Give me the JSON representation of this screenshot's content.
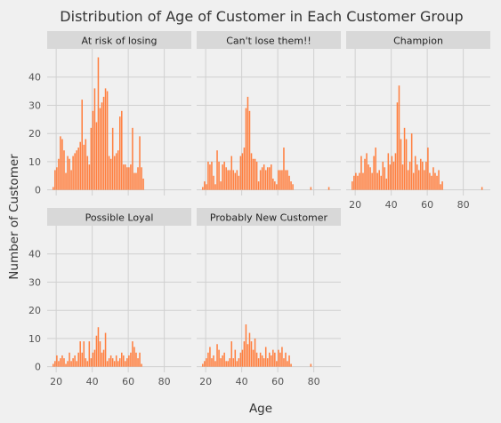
{
  "chart_data": {
    "type": "bar",
    "title": "Distribution of Age of Customer in Each Customer Group",
    "xlabel": "Age",
    "ylabel": "Number of Customer",
    "xlim": [
      15,
      95
    ],
    "ylim": [
      -2,
      50
    ],
    "xticks": [
      20,
      40,
      60,
      80
    ],
    "yticks": [
      0,
      10,
      20,
      30,
      40
    ],
    "bar_color": "#ff7f3f",
    "panel_background": "#f0f0f0",
    "strip_background": "#d8d8d8",
    "grid": true,
    "panels": [
      {
        "name": "At risk of losing",
        "bins": [
          {
            "age": 18,
            "count": 1
          },
          {
            "age": 19,
            "count": 7
          },
          {
            "age": 20,
            "count": 8
          },
          {
            "age": 21,
            "count": 11
          },
          {
            "age": 22,
            "count": 19
          },
          {
            "age": 23,
            "count": 18
          },
          {
            "age": 24,
            "count": 14
          },
          {
            "age": 25,
            "count": 6
          },
          {
            "age": 26,
            "count": 12
          },
          {
            "age": 27,
            "count": 11
          },
          {
            "age": 28,
            "count": 7
          },
          {
            "age": 29,
            "count": 12
          },
          {
            "age": 30,
            "count": 13
          },
          {
            "age": 31,
            "count": 14
          },
          {
            "age": 32,
            "count": 15
          },
          {
            "age": 33,
            "count": 17
          },
          {
            "age": 34,
            "count": 32
          },
          {
            "age": 35,
            "count": 16
          },
          {
            "age": 36,
            "count": 18
          },
          {
            "age": 37,
            "count": 12
          },
          {
            "age": 38,
            "count": 9
          },
          {
            "age": 39,
            "count": 22
          },
          {
            "age": 40,
            "count": 28
          },
          {
            "age": 41,
            "count": 36
          },
          {
            "age": 42,
            "count": 24
          },
          {
            "age": 43,
            "count": 47
          },
          {
            "age": 44,
            "count": 29
          },
          {
            "age": 45,
            "count": 31
          },
          {
            "age": 46,
            "count": 33
          },
          {
            "age": 47,
            "count": 36
          },
          {
            "age": 48,
            "count": 35
          },
          {
            "age": 49,
            "count": 12
          },
          {
            "age": 50,
            "count": 11
          },
          {
            "age": 51,
            "count": 22
          },
          {
            "age": 52,
            "count": 12
          },
          {
            "age": 53,
            "count": 13
          },
          {
            "age": 54,
            "count": 14
          },
          {
            "age": 55,
            "count": 26
          },
          {
            "age": 56,
            "count": 28
          },
          {
            "age": 57,
            "count": 9
          },
          {
            "age": 58,
            "count": 9
          },
          {
            "age": 59,
            "count": 8
          },
          {
            "age": 60,
            "count": 8
          },
          {
            "age": 61,
            "count": 9
          },
          {
            "age": 62,
            "count": 22
          },
          {
            "age": 63,
            "count": 6
          },
          {
            "age": 64,
            "count": 6
          },
          {
            "age": 65,
            "count": 8
          },
          {
            "age": 66,
            "count": 19
          },
          {
            "age": 67,
            "count": 8
          },
          {
            "age": 68,
            "count": 4
          }
        ]
      },
      {
        "name": "Can't lose them!!",
        "bins": [
          {
            "age": 18,
            "count": 1
          },
          {
            "age": 19,
            "count": 3
          },
          {
            "age": 20,
            "count": 2
          },
          {
            "age": 21,
            "count": 10
          },
          {
            "age": 22,
            "count": 9
          },
          {
            "age": 23,
            "count": 10
          },
          {
            "age": 24,
            "count": 5
          },
          {
            "age": 25,
            "count": 2
          },
          {
            "age": 26,
            "count": 14
          },
          {
            "age": 27,
            "count": 10
          },
          {
            "age": 28,
            "count": 3
          },
          {
            "age": 29,
            "count": 9
          },
          {
            "age": 30,
            "count": 10
          },
          {
            "age": 31,
            "count": 8
          },
          {
            "age": 32,
            "count": 7
          },
          {
            "age": 33,
            "count": 7
          },
          {
            "age": 34,
            "count": 12
          },
          {
            "age": 35,
            "count": 7
          },
          {
            "age": 36,
            "count": 6
          },
          {
            "age": 37,
            "count": 7
          },
          {
            "age": 38,
            "count": 5
          },
          {
            "age": 39,
            "count": 12
          },
          {
            "age": 40,
            "count": 13
          },
          {
            "age": 41,
            "count": 15
          },
          {
            "age": 42,
            "count": 29
          },
          {
            "age": 43,
            "count": 33
          },
          {
            "age": 44,
            "count": 28
          },
          {
            "age": 45,
            "count": 13
          },
          {
            "age": 46,
            "count": 11
          },
          {
            "age": 47,
            "count": 11
          },
          {
            "age": 48,
            "count": 10
          },
          {
            "age": 49,
            "count": 3
          },
          {
            "age": 50,
            "count": 7
          },
          {
            "age": 51,
            "count": 8
          },
          {
            "age": 52,
            "count": 9
          },
          {
            "age": 53,
            "count": 7
          },
          {
            "age": 54,
            "count": 8
          },
          {
            "age": 55,
            "count": 8
          },
          {
            "age": 56,
            "count": 9
          },
          {
            "age": 57,
            "count": 4
          },
          {
            "age": 58,
            "count": 3
          },
          {
            "age": 59,
            "count": 2
          },
          {
            "age": 60,
            "count": 7
          },
          {
            "age": 61,
            "count": 7
          },
          {
            "age": 62,
            "count": 7
          },
          {
            "age": 63,
            "count": 15
          },
          {
            "age": 64,
            "count": 7
          },
          {
            "age": 65,
            "count": 7
          },
          {
            "age": 66,
            "count": 5
          },
          {
            "age": 67,
            "count": 3
          },
          {
            "age": 68,
            "count": 2
          },
          {
            "age": 78,
            "count": 1
          },
          {
            "age": 88,
            "count": 1
          }
        ]
      },
      {
        "name": "Champion",
        "bins": [
          {
            "age": 18,
            "count": 3
          },
          {
            "age": 19,
            "count": 5
          },
          {
            "age": 20,
            "count": 6
          },
          {
            "age": 21,
            "count": 5
          },
          {
            "age": 22,
            "count": 6
          },
          {
            "age": 23,
            "count": 12
          },
          {
            "age": 24,
            "count": 6
          },
          {
            "age": 25,
            "count": 11
          },
          {
            "age": 26,
            "count": 13
          },
          {
            "age": 27,
            "count": 9
          },
          {
            "age": 28,
            "count": 8
          },
          {
            "age": 29,
            "count": 6
          },
          {
            "age": 30,
            "count": 12
          },
          {
            "age": 31,
            "count": 15
          },
          {
            "age": 32,
            "count": 6
          },
          {
            "age": 33,
            "count": 7
          },
          {
            "age": 34,
            "count": 5
          },
          {
            "age": 35,
            "count": 10
          },
          {
            "age": 36,
            "count": 8
          },
          {
            "age": 37,
            "count": 4
          },
          {
            "age": 38,
            "count": 13
          },
          {
            "age": 39,
            "count": 9
          },
          {
            "age": 40,
            "count": 12
          },
          {
            "age": 41,
            "count": 10
          },
          {
            "age": 42,
            "count": 13
          },
          {
            "age": 43,
            "count": 31
          },
          {
            "age": 44,
            "count": 37
          },
          {
            "age": 45,
            "count": 18
          },
          {
            "age": 46,
            "count": 9
          },
          {
            "age": 47,
            "count": 22
          },
          {
            "age": 48,
            "count": 18
          },
          {
            "age": 49,
            "count": 7
          },
          {
            "age": 50,
            "count": 10
          },
          {
            "age": 51,
            "count": 20
          },
          {
            "age": 52,
            "count": 6
          },
          {
            "age": 53,
            "count": 12
          },
          {
            "age": 54,
            "count": 9
          },
          {
            "age": 55,
            "count": 7
          },
          {
            "age": 56,
            "count": 11
          },
          {
            "age": 57,
            "count": 10
          },
          {
            "age": 58,
            "count": 7
          },
          {
            "age": 59,
            "count": 10
          },
          {
            "age": 60,
            "count": 15
          },
          {
            "age": 61,
            "count": 6
          },
          {
            "age": 62,
            "count": 5
          },
          {
            "age": 63,
            "count": 8
          },
          {
            "age": 64,
            "count": 6
          },
          {
            "age": 65,
            "count": 5
          },
          {
            "age": 66,
            "count": 7
          },
          {
            "age": 67,
            "count": 2
          },
          {
            "age": 68,
            "count": 3
          },
          {
            "age": 90,
            "count": 1
          }
        ]
      },
      {
        "name": "Possible Loyal",
        "bins": [
          {
            "age": 18,
            "count": 1
          },
          {
            "age": 19,
            "count": 2
          },
          {
            "age": 20,
            "count": 4
          },
          {
            "age": 21,
            "count": 2
          },
          {
            "age": 22,
            "count": 3
          },
          {
            "age": 23,
            "count": 4
          },
          {
            "age": 24,
            "count": 3
          },
          {
            "age": 25,
            "count": 1
          },
          {
            "age": 26,
            "count": 2
          },
          {
            "age": 27,
            "count": 5
          },
          {
            "age": 28,
            "count": 2
          },
          {
            "age": 29,
            "count": 3
          },
          {
            "age": 30,
            "count": 4
          },
          {
            "age": 31,
            "count": 2
          },
          {
            "age": 32,
            "count": 5
          },
          {
            "age": 33,
            "count": 9
          },
          {
            "age": 34,
            "count": 5
          },
          {
            "age": 35,
            "count": 9
          },
          {
            "age": 36,
            "count": 3
          },
          {
            "age": 37,
            "count": 2
          },
          {
            "age": 38,
            "count": 9
          },
          {
            "age": 39,
            "count": 3
          },
          {
            "age": 40,
            "count": 5
          },
          {
            "age": 41,
            "count": 6
          },
          {
            "age": 42,
            "count": 11
          },
          {
            "age": 43,
            "count": 14
          },
          {
            "age": 44,
            "count": 9
          },
          {
            "age": 45,
            "count": 5
          },
          {
            "age": 46,
            "count": 6
          },
          {
            "age": 47,
            "count": 12
          },
          {
            "age": 48,
            "count": 2
          },
          {
            "age": 49,
            "count": 3
          },
          {
            "age": 50,
            "count": 4
          },
          {
            "age": 51,
            "count": 3
          },
          {
            "age": 52,
            "count": 2
          },
          {
            "age": 53,
            "count": 4
          },
          {
            "age": 54,
            "count": 2
          },
          {
            "age": 55,
            "count": 3
          },
          {
            "age": 56,
            "count": 5
          },
          {
            "age": 57,
            "count": 4
          },
          {
            "age": 58,
            "count": 2
          },
          {
            "age": 59,
            "count": 3
          },
          {
            "age": 60,
            "count": 4
          },
          {
            "age": 61,
            "count": 5
          },
          {
            "age": 62,
            "count": 9
          },
          {
            "age": 63,
            "count": 7
          },
          {
            "age": 64,
            "count": 5
          },
          {
            "age": 65,
            "count": 3
          },
          {
            "age": 66,
            "count": 5
          },
          {
            "age": 67,
            "count": 1
          }
        ]
      },
      {
        "name": "Probably New Customer",
        "bins": [
          {
            "age": 18,
            "count": 1
          },
          {
            "age": 19,
            "count": 2
          },
          {
            "age": 20,
            "count": 3
          },
          {
            "age": 21,
            "count": 5
          },
          {
            "age": 22,
            "count": 7
          },
          {
            "age": 23,
            "count": 3
          },
          {
            "age": 24,
            "count": 4
          },
          {
            "age": 25,
            "count": 2
          },
          {
            "age": 26,
            "count": 8
          },
          {
            "age": 27,
            "count": 6
          },
          {
            "age": 28,
            "count": 3
          },
          {
            "age": 29,
            "count": 4
          },
          {
            "age": 30,
            "count": 5
          },
          {
            "age": 31,
            "count": 2
          },
          {
            "age": 32,
            "count": 2
          },
          {
            "age": 33,
            "count": 3
          },
          {
            "age": 34,
            "count": 9
          },
          {
            "age": 35,
            "count": 3
          },
          {
            "age": 36,
            "count": 6
          },
          {
            "age": 37,
            "count": 2
          },
          {
            "age": 38,
            "count": 3
          },
          {
            "age": 39,
            "count": 5
          },
          {
            "age": 40,
            "count": 6
          },
          {
            "age": 41,
            "count": 9
          },
          {
            "age": 42,
            "count": 15
          },
          {
            "age": 43,
            "count": 8
          },
          {
            "age": 44,
            "count": 12
          },
          {
            "age": 45,
            "count": 9
          },
          {
            "age": 46,
            "count": 6
          },
          {
            "age": 47,
            "count": 10
          },
          {
            "age": 48,
            "count": 5
          },
          {
            "age": 49,
            "count": 3
          },
          {
            "age": 50,
            "count": 5
          },
          {
            "age": 51,
            "count": 4
          },
          {
            "age": 52,
            "count": 3
          },
          {
            "age": 53,
            "count": 7
          },
          {
            "age": 54,
            "count": 3
          },
          {
            "age": 55,
            "count": 5
          },
          {
            "age": 56,
            "count": 4
          },
          {
            "age": 57,
            "count": 6
          },
          {
            "age": 58,
            "count": 5
          },
          {
            "age": 59,
            "count": 2
          },
          {
            "age": 60,
            "count": 6
          },
          {
            "age": 61,
            "count": 5
          },
          {
            "age": 62,
            "count": 7
          },
          {
            "age": 63,
            "count": 3
          },
          {
            "age": 64,
            "count": 5
          },
          {
            "age": 65,
            "count": 2
          },
          {
            "age": 66,
            "count": 4
          },
          {
            "age": 67,
            "count": 1
          },
          {
            "age": 78,
            "count": 1
          }
        ]
      }
    ]
  }
}
